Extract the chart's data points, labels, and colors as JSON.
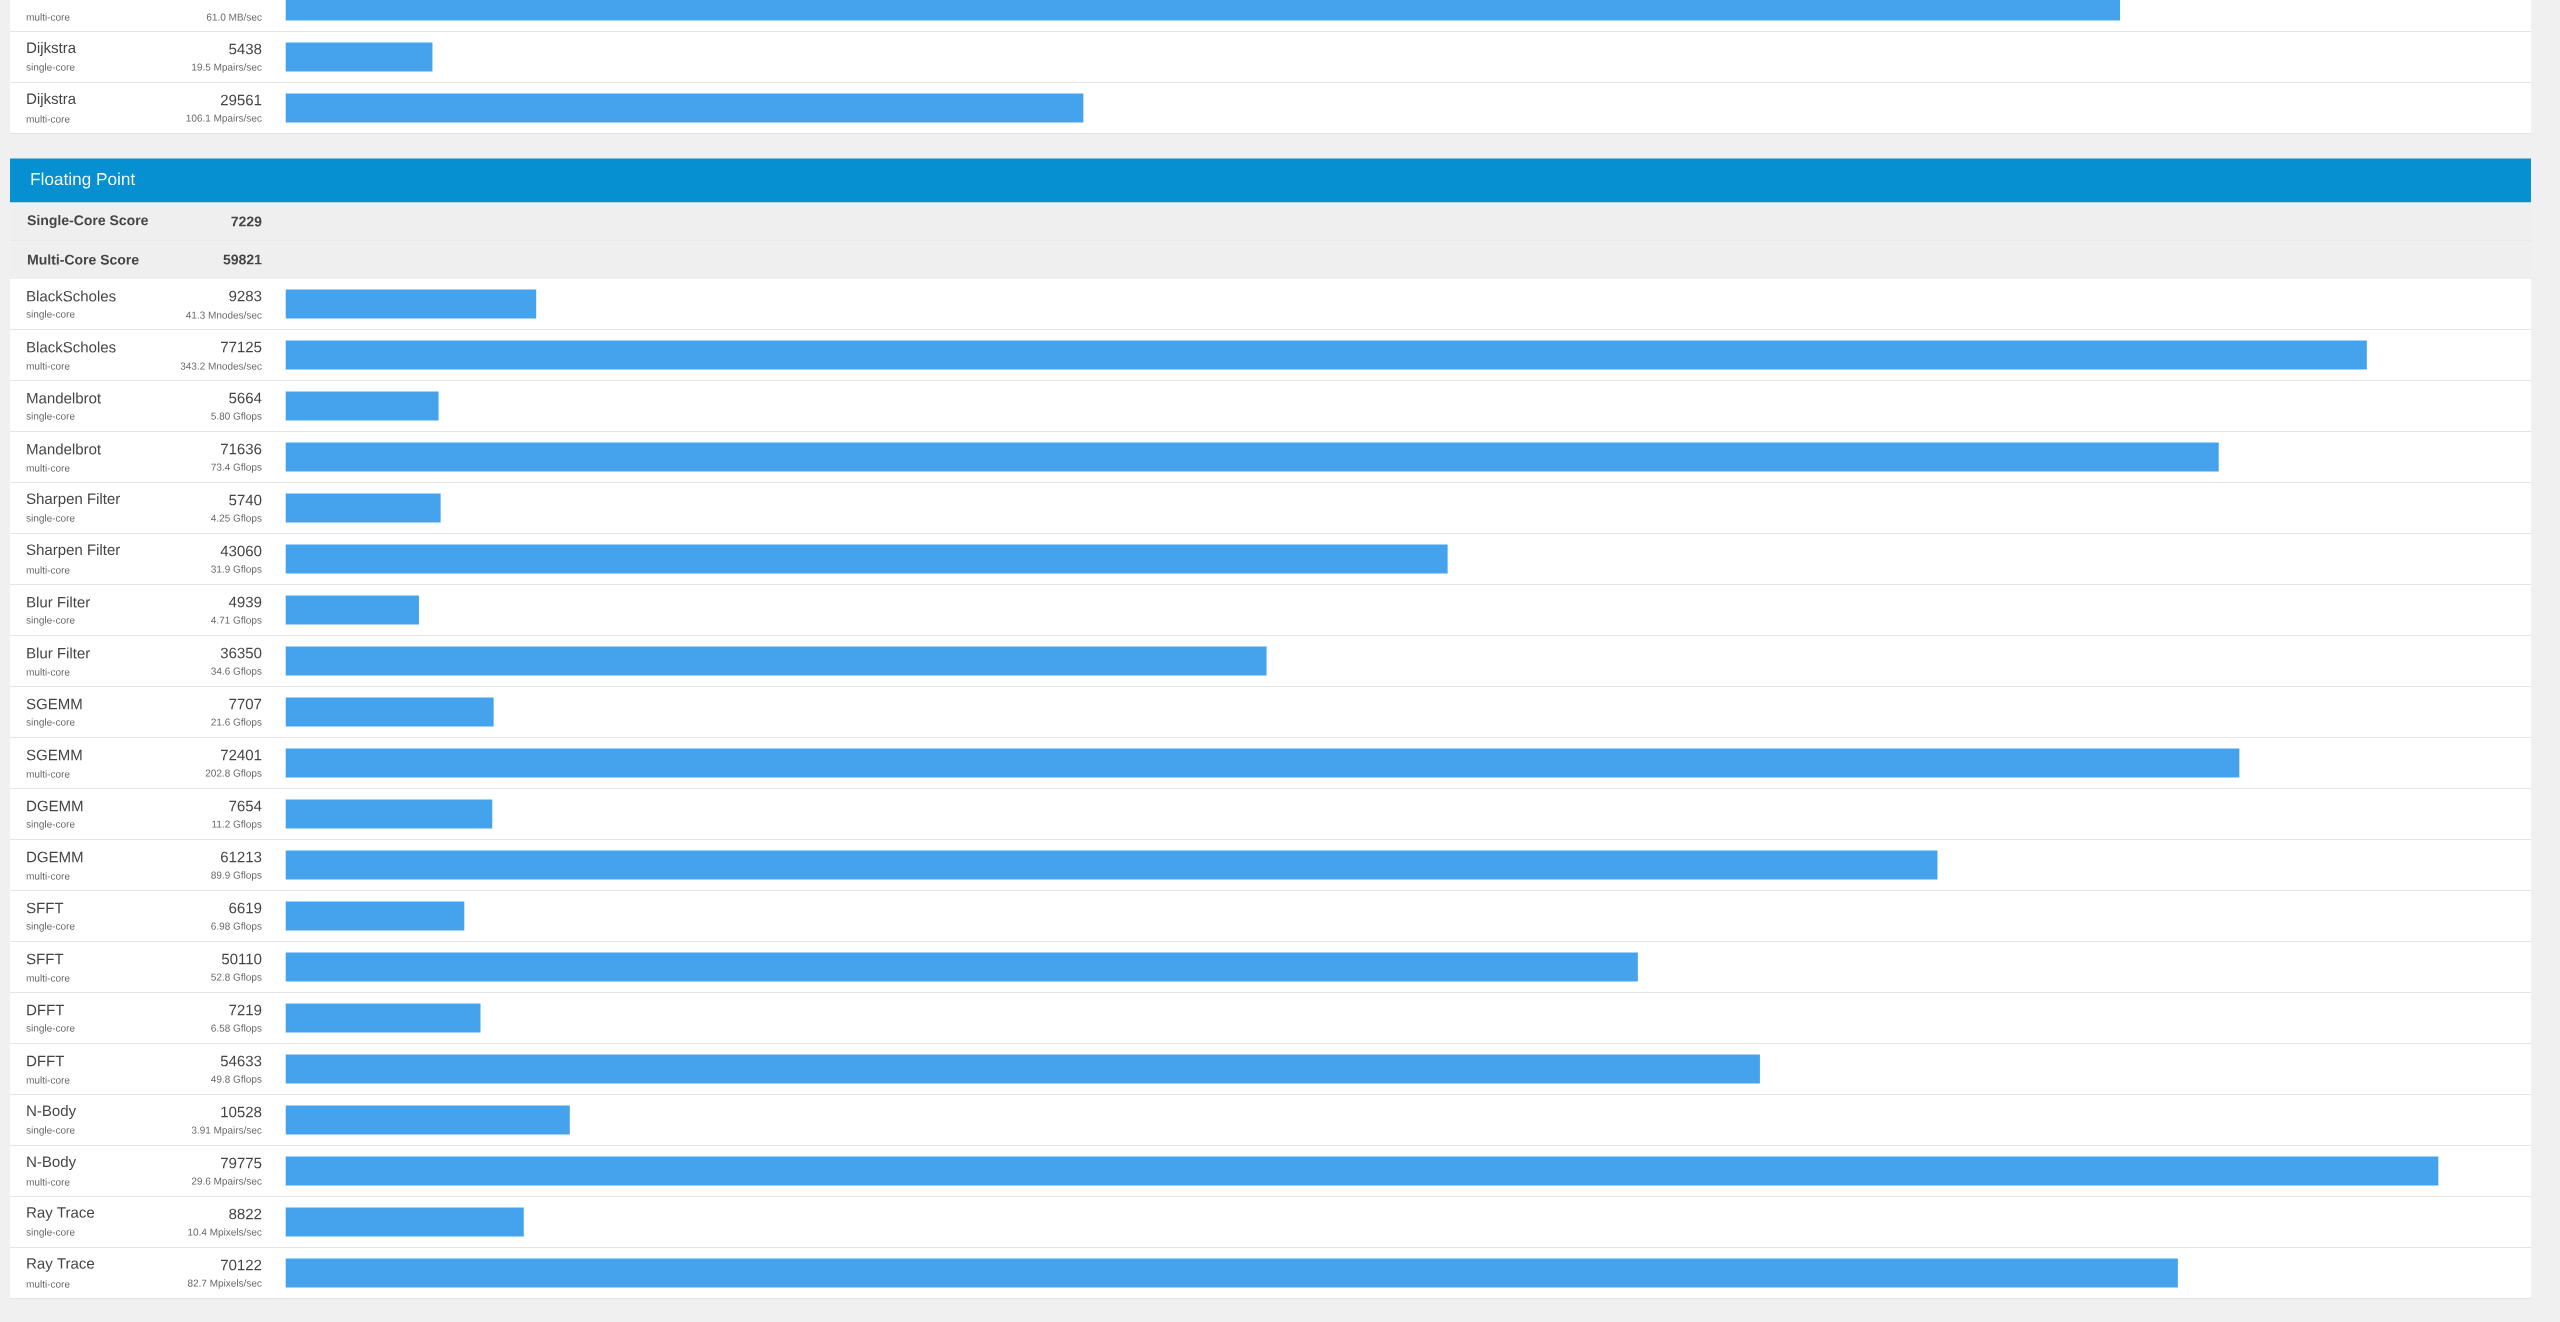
{
  "chart_data": [
    {
      "type": "bar",
      "orientation": "horizontal",
      "color": "#45a3ee",
      "categories": [
        null,
        "Dijkstra",
        "Dijkstra"
      ],
      "values": [
        67980,
        5438,
        29561
      ],
      "value_labels": [
        null,
        "5438",
        "29561"
      ],
      "annotations": [
        "multi-core",
        "61.0 MB/sec",
        "single-core",
        "19.5 Mpairs/sec",
        "multi-core",
        "106.1 Mpairs/sec"
      ]
    },
    {
      "type": "bar",
      "orientation": "horizontal",
      "color": "#45a3ee",
      "title": "Floating Point",
      "data_labels": true,
      "categories": [
        "BlackScholes",
        "BlackScholes",
        "Mandelbrot",
        "Mandelbrot",
        "Sharpen Filter",
        "Sharpen Filter",
        "Blur Filter",
        "Blur Filter",
        "SGEMM",
        "SGEMM",
        "DGEMM",
        "DGEMM",
        "SFFT",
        "SFFT",
        "DFFT",
        "DFFT",
        "N-Body",
        "N-Body",
        "Ray Trace",
        "Ray Trace"
      ],
      "values": [
        9283,
        77125,
        5664,
        71636,
        5740,
        43060,
        4939,
        36350,
        7707,
        72401,
        7654,
        61213,
        6619,
        50110,
        7219,
        54633,
        10528,
        79775,
        8822,
        70122
      ],
      "annotations": [
        "Single-Core Score",
        "7229",
        "Multi-Core Score",
        "59821",
        "single-core",
        "41.3 Mnodes/sec",
        "multi-core",
        "343.2 Mnodes/sec",
        "single-core",
        "5.80 Gflops",
        "multi-core",
        "73.4 Gflops",
        "single-core",
        "4.25 Gflops",
        "multi-core",
        "31.9 Gflops",
        "single-core",
        "4.71 Gflops",
        "multi-core",
        "34.6 Gflops",
        "single-core",
        "21.6 Gflops",
        "multi-core",
        "202.8 Gflops",
        "single-core",
        "11.2 Gflops",
        "multi-core",
        "89.9 Gflops",
        "single-core",
        "6.98 Gflops",
        "multi-core",
        "52.8 Gflops",
        "single-core",
        "6.58 Gflops",
        "multi-core",
        "49.8 Gflops",
        "single-core",
        "3.91 Mpairs/sec",
        "multi-core",
        "29.6 Mpairs/sec",
        "single-core",
        "10.4 Mpixels/sec",
        "multi-core",
        "82.7 Mpixels/sec"
      ]
    }
  ]
}
